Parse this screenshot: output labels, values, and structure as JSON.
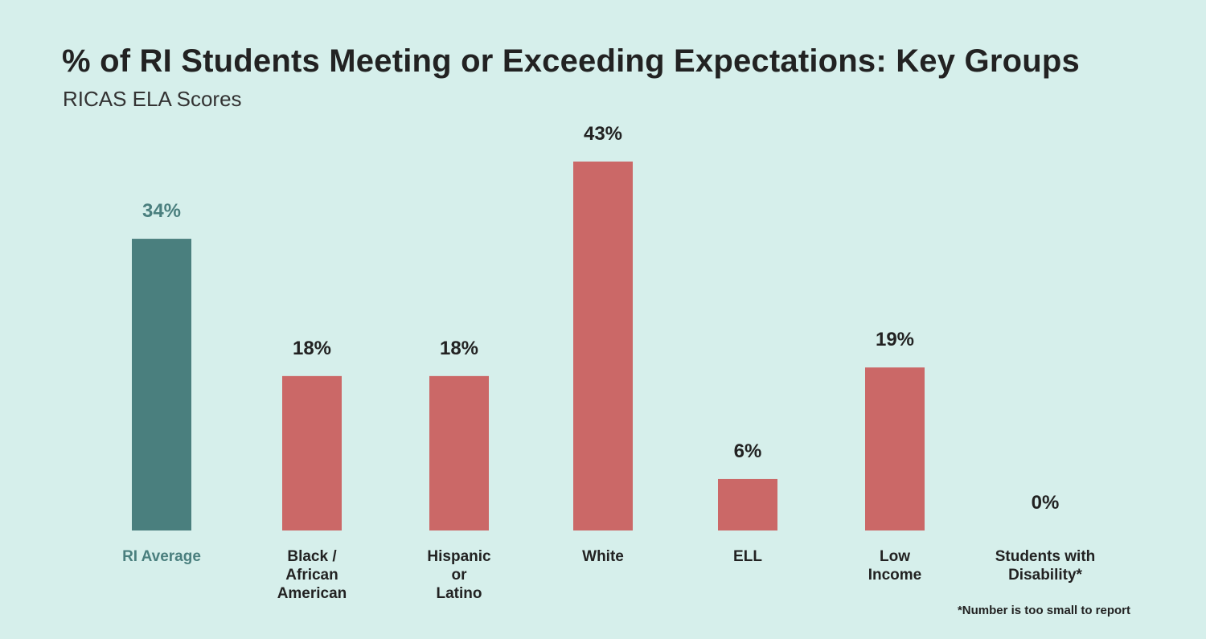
{
  "header": {
    "title": "% of RI Students Meeting or Exceeding Expectations: Key Groups",
    "subtitle": "RICAS ELA Scores"
  },
  "footnote": "*Number is too small to report",
  "colors": {
    "background": "#d6efeb",
    "average_bar": "#4a7f7e",
    "group_bar": "#cb6867",
    "average_text": "#4a7f7e",
    "text": "#222222"
  },
  "chart_data": {
    "type": "bar",
    "title": "% of RI Students Meeting or Exceeding Expectations: Key Groups",
    "subtitle": "RICAS ELA Scores",
    "xlabel": "",
    "ylabel": "",
    "ylim": [
      0,
      43
    ],
    "grid": false,
    "legend": "none",
    "categories": [
      [
        "RI Average"
      ],
      [
        "Black /",
        "African",
        "American"
      ],
      [
        "Hispanic",
        "or",
        "Latino"
      ],
      [
        "White"
      ],
      [
        "ELL"
      ],
      [
        "Low",
        "Income"
      ],
      [
        "Students with",
        "Disability*"
      ]
    ],
    "values": [
      34,
      18,
      18,
      43,
      6,
      19,
      0
    ],
    "value_labels": [
      "34%",
      "18%",
      "18%",
      "43%",
      "6%",
      "19%",
      "0%"
    ],
    "highlight": [
      "average",
      "group",
      "group",
      "group",
      "group",
      "group",
      "group"
    ]
  }
}
